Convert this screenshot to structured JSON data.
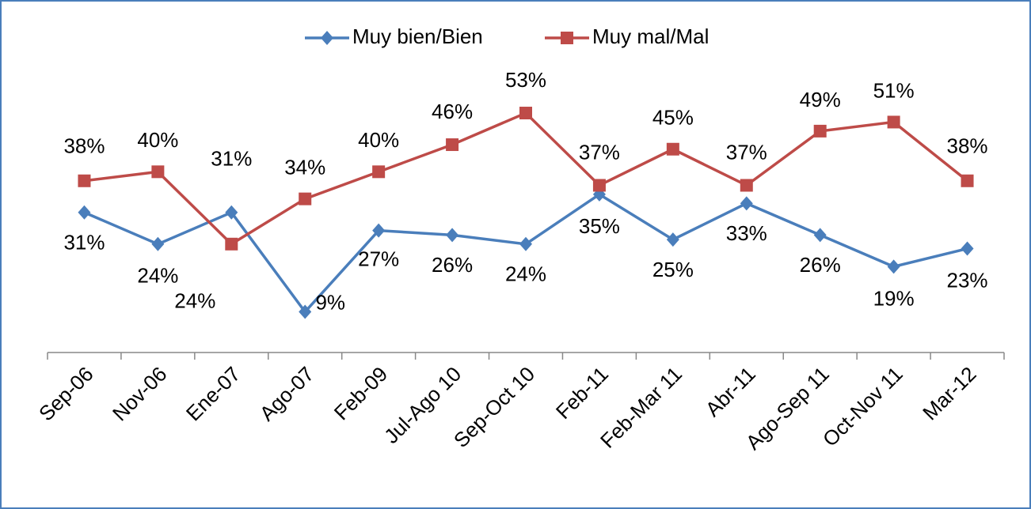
{
  "chart_data": {
    "type": "line",
    "categories": [
      "Sep-06",
      "Nov-06",
      "Ene-07",
      "Ago-07",
      "Feb-09",
      "Jul-Ago 10",
      "Sep-Oct 10",
      "Feb-11",
      "Feb-Mar 11",
      "Abr-11",
      "Ago-Sep 11",
      "Oct-Nov 11",
      "Mar-12"
    ],
    "series": [
      {
        "name": "Muy bien/Bien",
        "color": "#4a7ebb",
        "marker": "diamond",
        "values": [
          31,
          24,
          31,
          9,
          27,
          26,
          24,
          35,
          25,
          33,
          26,
          19,
          23
        ],
        "value_labels": [
          "31%",
          "24%",
          "31%",
          "9%",
          "27%",
          "26%",
          "24%",
          "35%",
          "25%",
          "33%",
          "26%",
          "19%",
          "23%"
        ]
      },
      {
        "name": "Muy mal/Mal",
        "color": "#be4b48",
        "marker": "square",
        "values": [
          38,
          40,
          24,
          34,
          40,
          46,
          53,
          37,
          45,
          37,
          49,
          51,
          38
        ],
        "value_labels": [
          "38%",
          "40%",
          "24%",
          "34%",
          "40%",
          "46%",
          "53%",
          "37%",
          "45%",
          "37%",
          "49%",
          "51%",
          "38%"
        ]
      }
    ],
    "ylim": [
      0,
      60
    ],
    "legend": "top"
  }
}
